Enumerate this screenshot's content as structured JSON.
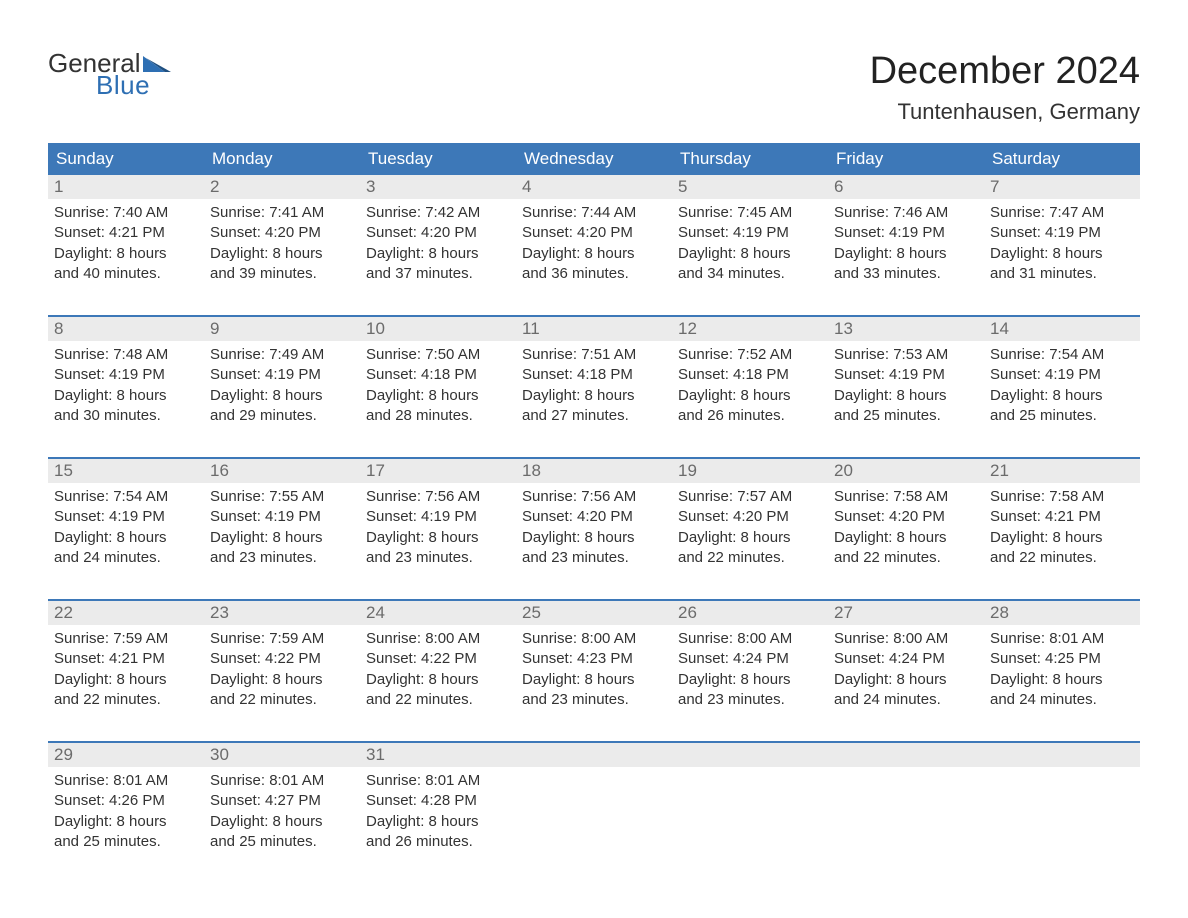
{
  "brand": {
    "general": "General",
    "blue": "Blue",
    "accent_color": "#2e6fb3"
  },
  "title": "December 2024",
  "location": "Tuntenhausen, Germany",
  "colors": {
    "header_bg": "#3d78b8",
    "header_text": "#ffffff",
    "daynum_bg": "#ebebeb",
    "daynum_text": "#6b6b6b",
    "week_border": "#3d78b8",
    "body_text": "#333333",
    "page_bg": "#ffffff"
  },
  "weekdays": [
    "Sunday",
    "Monday",
    "Tuesday",
    "Wednesday",
    "Thursday",
    "Friday",
    "Saturday"
  ],
  "weeks": [
    [
      {
        "n": "1",
        "sunrise": "Sunrise: 7:40 AM",
        "sunset": "Sunset: 4:21 PM",
        "d1": "Daylight: 8 hours",
        "d2": "and 40 minutes."
      },
      {
        "n": "2",
        "sunrise": "Sunrise: 7:41 AM",
        "sunset": "Sunset: 4:20 PM",
        "d1": "Daylight: 8 hours",
        "d2": "and 39 minutes."
      },
      {
        "n": "3",
        "sunrise": "Sunrise: 7:42 AM",
        "sunset": "Sunset: 4:20 PM",
        "d1": "Daylight: 8 hours",
        "d2": "and 37 minutes."
      },
      {
        "n": "4",
        "sunrise": "Sunrise: 7:44 AM",
        "sunset": "Sunset: 4:20 PM",
        "d1": "Daylight: 8 hours",
        "d2": "and 36 minutes."
      },
      {
        "n": "5",
        "sunrise": "Sunrise: 7:45 AM",
        "sunset": "Sunset: 4:19 PM",
        "d1": "Daylight: 8 hours",
        "d2": "and 34 minutes."
      },
      {
        "n": "6",
        "sunrise": "Sunrise: 7:46 AM",
        "sunset": "Sunset: 4:19 PM",
        "d1": "Daylight: 8 hours",
        "d2": "and 33 minutes."
      },
      {
        "n": "7",
        "sunrise": "Sunrise: 7:47 AM",
        "sunset": "Sunset: 4:19 PM",
        "d1": "Daylight: 8 hours",
        "d2": "and 31 minutes."
      }
    ],
    [
      {
        "n": "8",
        "sunrise": "Sunrise: 7:48 AM",
        "sunset": "Sunset: 4:19 PM",
        "d1": "Daylight: 8 hours",
        "d2": "and 30 minutes."
      },
      {
        "n": "9",
        "sunrise": "Sunrise: 7:49 AM",
        "sunset": "Sunset: 4:19 PM",
        "d1": "Daylight: 8 hours",
        "d2": "and 29 minutes."
      },
      {
        "n": "10",
        "sunrise": "Sunrise: 7:50 AM",
        "sunset": "Sunset: 4:18 PM",
        "d1": "Daylight: 8 hours",
        "d2": "and 28 minutes."
      },
      {
        "n": "11",
        "sunrise": "Sunrise: 7:51 AM",
        "sunset": "Sunset: 4:18 PM",
        "d1": "Daylight: 8 hours",
        "d2": "and 27 minutes."
      },
      {
        "n": "12",
        "sunrise": "Sunrise: 7:52 AM",
        "sunset": "Sunset: 4:18 PM",
        "d1": "Daylight: 8 hours",
        "d2": "and 26 minutes."
      },
      {
        "n": "13",
        "sunrise": "Sunrise: 7:53 AM",
        "sunset": "Sunset: 4:19 PM",
        "d1": "Daylight: 8 hours",
        "d2": "and 25 minutes."
      },
      {
        "n": "14",
        "sunrise": "Sunrise: 7:54 AM",
        "sunset": "Sunset: 4:19 PM",
        "d1": "Daylight: 8 hours",
        "d2": "and 25 minutes."
      }
    ],
    [
      {
        "n": "15",
        "sunrise": "Sunrise: 7:54 AM",
        "sunset": "Sunset: 4:19 PM",
        "d1": "Daylight: 8 hours",
        "d2": "and 24 minutes."
      },
      {
        "n": "16",
        "sunrise": "Sunrise: 7:55 AM",
        "sunset": "Sunset: 4:19 PM",
        "d1": "Daylight: 8 hours",
        "d2": "and 23 minutes."
      },
      {
        "n": "17",
        "sunrise": "Sunrise: 7:56 AM",
        "sunset": "Sunset: 4:19 PM",
        "d1": "Daylight: 8 hours",
        "d2": "and 23 minutes."
      },
      {
        "n": "18",
        "sunrise": "Sunrise: 7:56 AM",
        "sunset": "Sunset: 4:20 PM",
        "d1": "Daylight: 8 hours",
        "d2": "and 23 minutes."
      },
      {
        "n": "19",
        "sunrise": "Sunrise: 7:57 AM",
        "sunset": "Sunset: 4:20 PM",
        "d1": "Daylight: 8 hours",
        "d2": "and 22 minutes."
      },
      {
        "n": "20",
        "sunrise": "Sunrise: 7:58 AM",
        "sunset": "Sunset: 4:20 PM",
        "d1": "Daylight: 8 hours",
        "d2": "and 22 minutes."
      },
      {
        "n": "21",
        "sunrise": "Sunrise: 7:58 AM",
        "sunset": "Sunset: 4:21 PM",
        "d1": "Daylight: 8 hours",
        "d2": "and 22 minutes."
      }
    ],
    [
      {
        "n": "22",
        "sunrise": "Sunrise: 7:59 AM",
        "sunset": "Sunset: 4:21 PM",
        "d1": "Daylight: 8 hours",
        "d2": "and 22 minutes."
      },
      {
        "n": "23",
        "sunrise": "Sunrise: 7:59 AM",
        "sunset": "Sunset: 4:22 PM",
        "d1": "Daylight: 8 hours",
        "d2": "and 22 minutes."
      },
      {
        "n": "24",
        "sunrise": "Sunrise: 8:00 AM",
        "sunset": "Sunset: 4:22 PM",
        "d1": "Daylight: 8 hours",
        "d2": "and 22 minutes."
      },
      {
        "n": "25",
        "sunrise": "Sunrise: 8:00 AM",
        "sunset": "Sunset: 4:23 PM",
        "d1": "Daylight: 8 hours",
        "d2": "and 23 minutes."
      },
      {
        "n": "26",
        "sunrise": "Sunrise: 8:00 AM",
        "sunset": "Sunset: 4:24 PM",
        "d1": "Daylight: 8 hours",
        "d2": "and 23 minutes."
      },
      {
        "n": "27",
        "sunrise": "Sunrise: 8:00 AM",
        "sunset": "Sunset: 4:24 PM",
        "d1": "Daylight: 8 hours",
        "d2": "and 24 minutes."
      },
      {
        "n": "28",
        "sunrise": "Sunrise: 8:01 AM",
        "sunset": "Sunset: 4:25 PM",
        "d1": "Daylight: 8 hours",
        "d2": "and 24 minutes."
      }
    ],
    [
      {
        "n": "29",
        "sunrise": "Sunrise: 8:01 AM",
        "sunset": "Sunset: 4:26 PM",
        "d1": "Daylight: 8 hours",
        "d2": "and 25 minutes."
      },
      {
        "n": "30",
        "sunrise": "Sunrise: 8:01 AM",
        "sunset": "Sunset: 4:27 PM",
        "d1": "Daylight: 8 hours",
        "d2": "and 25 minutes."
      },
      {
        "n": "31",
        "sunrise": "Sunrise: 8:01 AM",
        "sunset": "Sunset: 4:28 PM",
        "d1": "Daylight: 8 hours",
        "d2": "and 26 minutes."
      },
      {
        "n": "",
        "sunrise": "",
        "sunset": "",
        "d1": "",
        "d2": "",
        "empty": true
      },
      {
        "n": "",
        "sunrise": "",
        "sunset": "",
        "d1": "",
        "d2": "",
        "empty": true
      },
      {
        "n": "",
        "sunrise": "",
        "sunset": "",
        "d1": "",
        "d2": "",
        "empty": true
      },
      {
        "n": "",
        "sunrise": "",
        "sunset": "",
        "d1": "",
        "d2": "",
        "empty": true
      }
    ]
  ]
}
